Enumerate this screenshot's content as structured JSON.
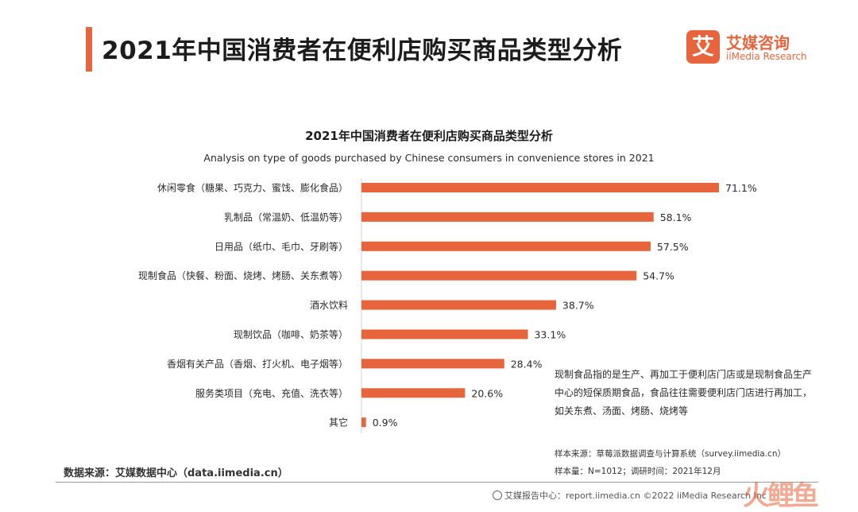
{
  "header": {
    "title": "2021年中国消费者在便利店购买商品类型分析"
  },
  "logo": {
    "mark": "艾",
    "name_cn": "艾媒咨询",
    "name_en": "iiMedia Research"
  },
  "chart_data": {
    "type": "bar",
    "orientation": "horizontal",
    "title": "2021年中国消费者在便利店购买商品类型分析",
    "subtitle": "Analysis on type of goods purchased by Chinese consumers in convenience stores in 2021",
    "categories": [
      "休闲零食（糖果、巧克力、蜜饯、膨化食品）",
      "乳制品（常温奶、低温奶等）",
      "日用品（纸巾、毛巾、牙刷等）",
      "现制食品（快餐、粉面、烧烤、烤肠、关东煮等）",
      "酒水饮料",
      "现制饮品（咖啡、奶茶等）",
      "香烟有关产品（香烟、打火机、电子烟等）",
      "服务类项目（充电、充值、洗衣等）",
      "其它"
    ],
    "values": [
      71.1,
      58.1,
      57.5,
      54.7,
      38.7,
      33.1,
      28.4,
      20.6,
      0.9
    ],
    "value_labels": [
      "71.1%",
      "58.1%",
      "57.5%",
      "54.7%",
      "38.7%",
      "33.1%",
      "28.4%",
      "20.6%",
      "0.9%"
    ],
    "unit": "%",
    "xlim": [
      0,
      80
    ],
    "bar_color": "#e8643c",
    "grid": false,
    "legend": "none"
  },
  "note": "现制食品指的是生产、再加工于便利店门店或是现制食品生产中心的短保质期食品，食品往往需要便利店门店进行再加工，如关东煮、汤面、烤肠、烧烤等",
  "sample": {
    "source": "样本来源：草莓派数据调查与计算系统（survey.iimedia.cn）",
    "size": "样本量：N=1012；调研时间：2021年12月"
  },
  "data_source": "数据来源：艾媒数据中心（data.iimedia.cn）",
  "footer": {
    "text": "艾媒报告中心：report.iimedia.cn   ©2022  iiMedia Research  Inc",
    "watermark": "火鲤鱼"
  }
}
